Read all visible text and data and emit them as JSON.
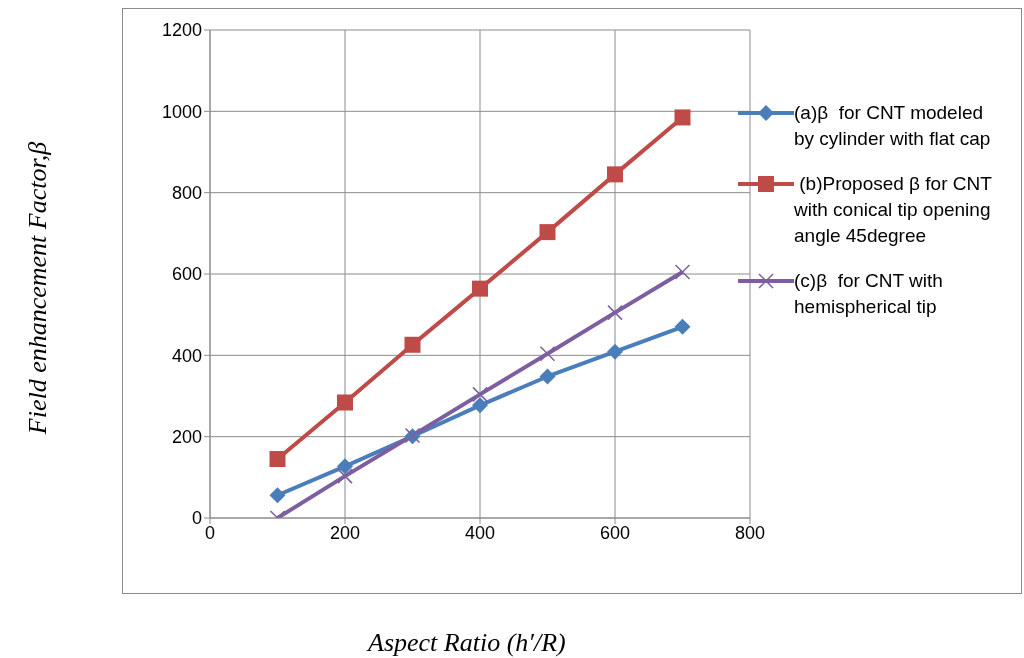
{
  "chart_data": {
    "type": "line",
    "xlabel": "Aspect Ratio (h′/R)",
    "ylabel": "Field enhancement Factor,β",
    "x": [
      100,
      200,
      300,
      400,
      500,
      600,
      700
    ],
    "xlim": [
      0,
      800
    ],
    "xticks": [
      0,
      200,
      400,
      600,
      800
    ],
    "ylim": [
      0,
      1200
    ],
    "yticks": [
      0,
      200,
      400,
      600,
      800,
      1000,
      1200
    ],
    "grid": true,
    "legend": "right",
    "series": [
      {
        "name": "(a)β  for CNT modeled by cylinder with flat cap",
        "color": "#4a7ebb",
        "marker": "diamond",
        "values": [
          56,
          127,
          201,
          277,
          348,
          409,
          470
        ]
      },
      {
        "name": " (b)Proposed β for CNT with conical tip opening angle 45degree",
        "color": "#be4b48",
        "marker": "square",
        "values": [
          145,
          284,
          426,
          564,
          703,
          845,
          985
        ]
      },
      {
        "name": "(c)β  for CNT with hemispherical tip",
        "color": "#7d5fa0",
        "marker": "cross",
        "values": [
          0,
          103,
          203,
          304,
          404,
          505,
          605
        ]
      }
    ]
  }
}
